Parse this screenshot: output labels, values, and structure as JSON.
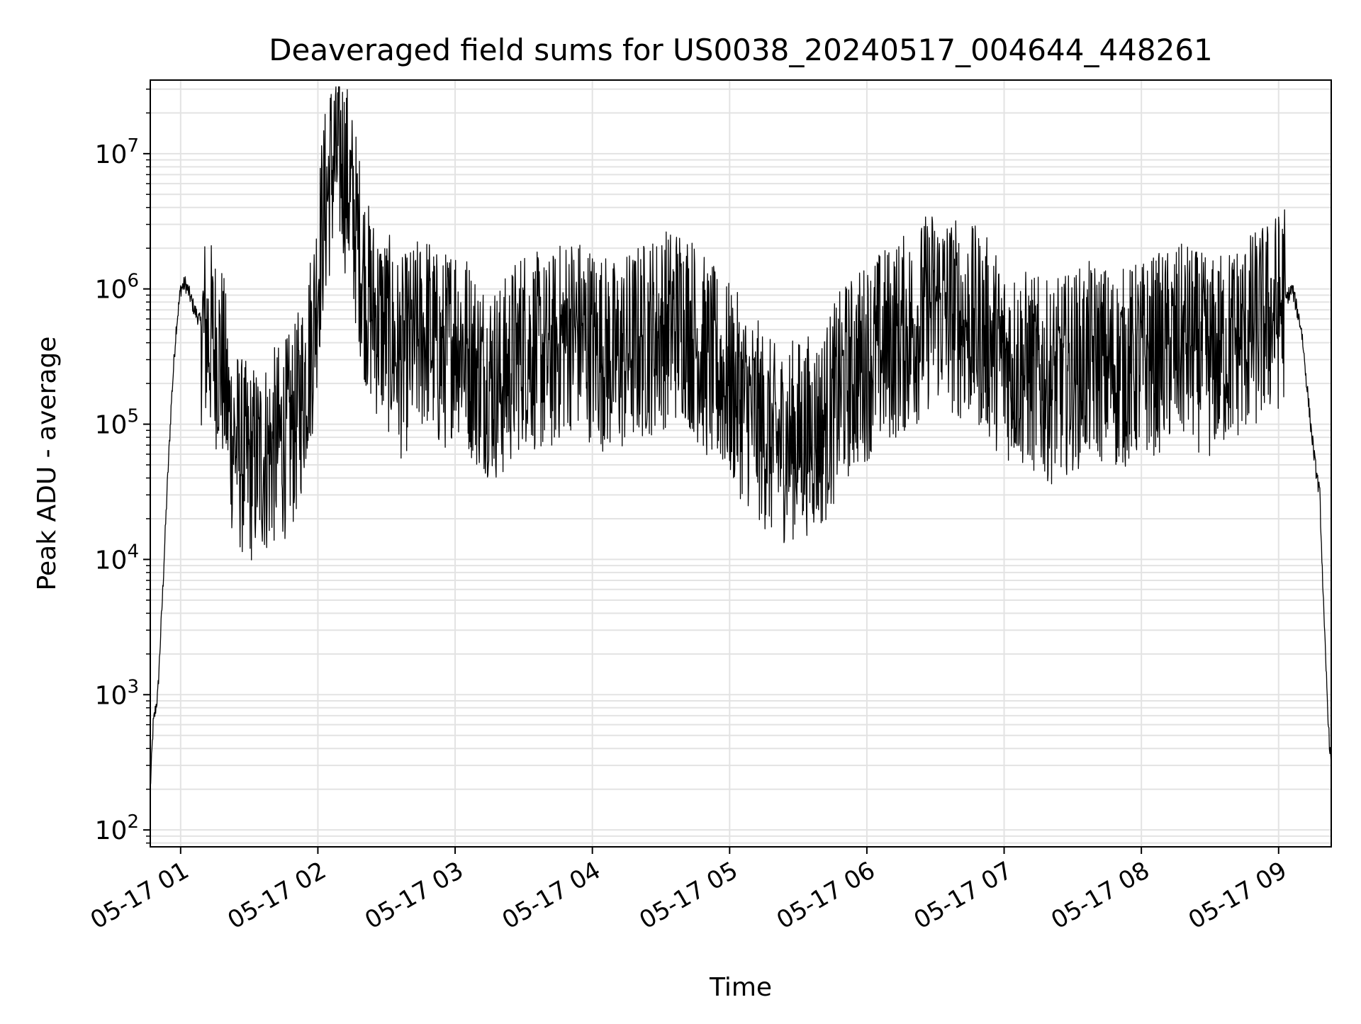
{
  "chart_data": {
    "type": "line",
    "title": "Deaveraged field sums for US0038_20240517_004644_448261",
    "xlabel": "Time",
    "ylabel": "Peak ADU - average",
    "yscale": "log",
    "grid": true,
    "legend": "none",
    "xlim": [
      "05-17 00:46:44",
      "05-17 09:23:00"
    ],
    "ylim": [
      75,
      35000000
    ],
    "x_ticks": [
      "05-17 01",
      "05-17 02",
      "05-17 03",
      "05-17 04",
      "05-17 05",
      "05-17 06",
      "05-17 07",
      "05-17 08",
      "05-17 09"
    ],
    "y_ticks": [
      {
        "base": "10",
        "exp": "2",
        "value": 100
      },
      {
        "base": "10",
        "exp": "3",
        "value": 1000
      },
      {
        "base": "10",
        "exp": "4",
        "value": 10000
      },
      {
        "base": "10",
        "exp": "5",
        "value": 100000
      },
      {
        "base": "10",
        "exp": "6",
        "value": 1000000
      },
      {
        "base": "10",
        "exp": "7",
        "value": 10000000
      }
    ],
    "line_color": "#000000",
    "series": [
      {
        "x": [
          "00:46:44",
          "00:48",
          "00:50",
          "00:52",
          "00:54",
          "00:56",
          "00:58",
          "01:00",
          "01:02",
          "01:04",
          "01:06",
          "01:08",
          "01:10",
          "01:14",
          "01:18",
          "01:22",
          "01:26",
          "01:30",
          "01:34",
          "01:38",
          "01:42",
          "01:46",
          "01:50",
          "01:54",
          "01:58",
          "02:02",
          "02:06",
          "02:10",
          "02:14",
          "02:18",
          "02:22",
          "02:26",
          "02:30",
          "02:36",
          "02:42",
          "02:48",
          "02:54",
          "03:00",
          "03:10",
          "03:20",
          "03:30",
          "03:40",
          "03:50",
          "04:00",
          "04:10",
          "04:20",
          "04:30",
          "04:40",
          "04:50",
          "05:00",
          "05:10",
          "05:20",
          "05:30",
          "05:40",
          "05:50",
          "06:00",
          "06:10",
          "06:20",
          "06:30",
          "06:40",
          "06:50",
          "07:00",
          "07:10",
          "07:20",
          "07:30",
          "07:40",
          "07:50",
          "08:00",
          "08:10",
          "08:20",
          "08:30",
          "08:40",
          "08:50",
          "09:00",
          "09:06",
          "09:10",
          "09:14",
          "09:16",
          "09:18",
          "09:20",
          "09:22",
          "09:23"
        ],
        "y": [
          200,
          600,
          1000,
          5000,
          30000,
          150000,
          500000,
          1000000,
          1100000,
          900000,
          700000,
          600000,
          500000,
          400000,
          300000,
          90000,
          60000,
          50000,
          55000,
          60000,
          70000,
          80000,
          100000,
          200000,
          500000,
          3000000,
          8000000,
          10000000,
          5000000,
          2000000,
          800000,
          600000,
          500000,
          300000,
          400000,
          500000,
          300000,
          500000,
          250000,
          200000,
          400000,
          300000,
          500000,
          400000,
          300000,
          400000,
          500000,
          600000,
          300000,
          200000,
          120000,
          70000,
          80000,
          90000,
          200000,
          300000,
          400000,
          500000,
          800000,
          600000,
          500000,
          300000,
          250000,
          200000,
          250000,
          300000,
          250000,
          300000,
          350000,
          400000,
          300000,
          400000,
          500000,
          700000,
          1000000,
          500000,
          100000,
          50000,
          30000,
          3000,
          500,
          300
        ]
      }
    ]
  }
}
